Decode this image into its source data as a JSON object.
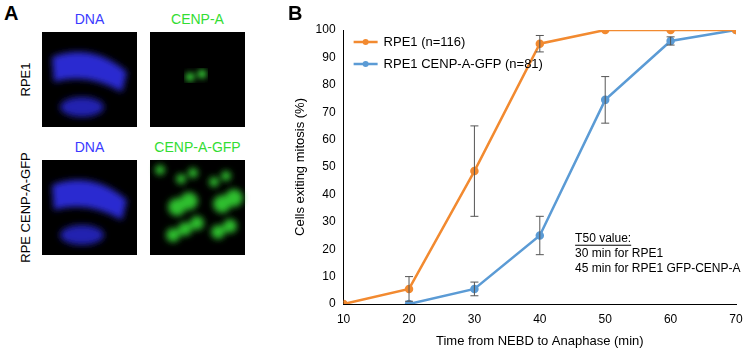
{
  "panel_labels": [
    "A",
    "B"
  ],
  "panel_a": {
    "rows": [
      {
        "label": "RPE1",
        "channels": [
          "DNA",
          "CENP-A"
        ]
      },
      {
        "label": "RPE CENP-A-GFP",
        "channels": [
          "DNA",
          "CENP-A-GFP"
        ]
      }
    ]
  },
  "chart_data": {
    "type": "line",
    "x": [
      10,
      20,
      30,
      40,
      50,
      60,
      70
    ],
    "series": [
      {
        "name": "RPE1 (n=116)",
        "color": "#f28a30",
        "values": [
          0,
          5.5,
          48.5,
          95,
          100,
          100,
          100
        ],
        "errors": [
          0,
          4.5,
          16.5,
          3,
          0,
          0,
          0
        ]
      },
      {
        "name": "RPE1 CENP-A-GFP (n=81)",
        "color": "#5b9bd5",
        "values": [
          null,
          0,
          5.5,
          25,
          74.5,
          96,
          100
        ],
        "errors": [
          null,
          0,
          2.5,
          7,
          8.5,
          1.5,
          0
        ]
      }
    ],
    "xlim": [
      10,
      70
    ],
    "xticks": [
      10,
      20,
      30,
      40,
      50,
      60,
      70
    ],
    "ylim": [
      0,
      100
    ],
    "yticks": [
      0,
      10,
      20,
      30,
      40,
      50,
      60,
      70,
      80,
      90,
      100
    ],
    "x_label": "Time from NEBD to Anaphase (min)",
    "y_label": "Cells exiting mitosis (%)",
    "annotation": [
      "T50 value:",
      "30 min for RPE1",
      "45 min for RPE1 GFP-CENP-A"
    ],
    "legend": "upper left",
    "grid": false,
    "marker": "circle"
  }
}
